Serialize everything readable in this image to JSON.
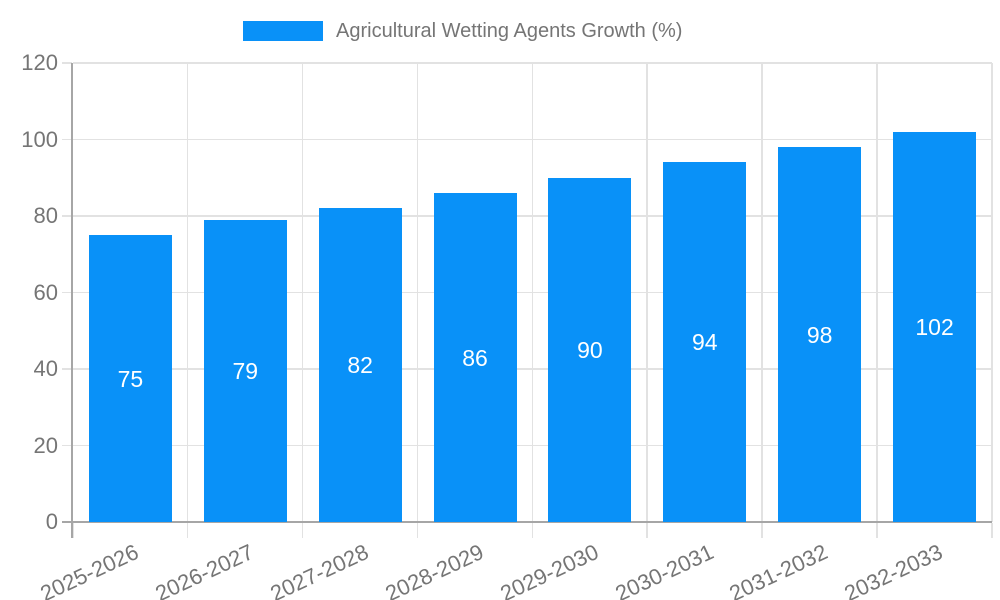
{
  "legend": {
    "label": "Agricultural Wetting Agents Growth (%)"
  },
  "chart_data": {
    "type": "bar",
    "title": "Agricultural Wetting Agents Growth (%)",
    "categories": [
      "2025-2026",
      "2026-2027",
      "2027-2028",
      "2028-2029",
      "2029-2030",
      "2030-2031",
      "2031-2032",
      "2032-2033"
    ],
    "values": [
      75,
      79,
      82,
      86,
      90,
      94,
      98,
      102
    ],
    "series": [
      {
        "name": "Agricultural Wetting Agents Growth (%)",
        "values": [
          75,
          79,
          82,
          86,
          90,
          94,
          98,
          102
        ]
      }
    ],
    "xlabel": "",
    "ylabel": "",
    "ylim": [
      0,
      120
    ],
    "yticks": [
      0,
      20,
      40,
      60,
      80,
      100,
      120
    ],
    "grid": true,
    "legend_position": "top",
    "bar_label_position": "center",
    "colors": {
      "bar": "#0991f8",
      "grid": "#e2e2e2",
      "axis": "#a6a6a6",
      "tick_text": "#757575",
      "bar_label_text": "#ffffff",
      "background": "#ffffff"
    }
  }
}
